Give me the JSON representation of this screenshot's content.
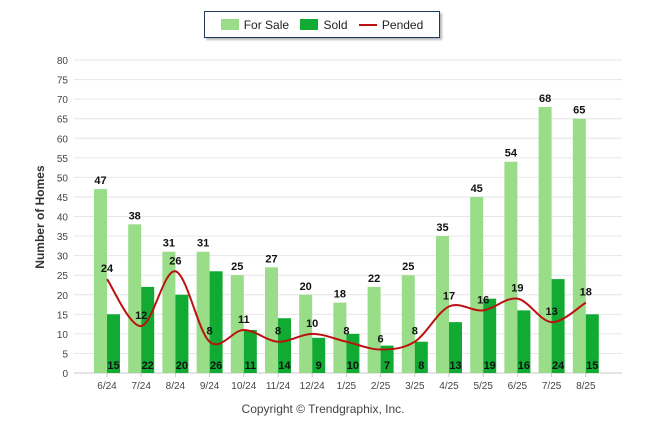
{
  "chart_data": {
    "type": "bar",
    "ylabel": "Number of Homes",
    "ylim": [
      0,
      80
    ],
    "yticks": [
      0,
      5,
      10,
      15,
      20,
      25,
      30,
      35,
      40,
      45,
      50,
      55,
      60,
      65,
      70,
      75,
      80
    ],
    "categories": [
      "6/24",
      "7/24",
      "8/24",
      "9/24",
      "10/24",
      "11/24",
      "12/24",
      "1/25",
      "2/25",
      "3/25",
      "4/25",
      "5/25",
      "6/25",
      "7/25",
      "8/25"
    ],
    "series": [
      {
        "name": "For Sale",
        "kind": "bar",
        "color": "#99dd88",
        "values": [
          47,
          38,
          31,
          31,
          25,
          27,
          20,
          18,
          22,
          25,
          35,
          45,
          54,
          68,
          65
        ]
      },
      {
        "name": "Sold",
        "kind": "bar",
        "color": "#11aa33",
        "values": [
          15,
          22,
          20,
          26,
          11,
          14,
          9,
          10,
          7,
          8,
          13,
          19,
          16,
          24,
          15
        ]
      },
      {
        "name": "Pended",
        "kind": "line",
        "color": "#bb1111",
        "values": [
          24,
          12,
          26,
          8,
          11,
          8,
          10,
          8,
          6,
          8,
          17,
          16,
          19,
          13,
          18
        ]
      }
    ],
    "legend": "top-center",
    "grid": true
  },
  "footer": {
    "copyright": "Copyright © Trendgraphix, Inc."
  }
}
